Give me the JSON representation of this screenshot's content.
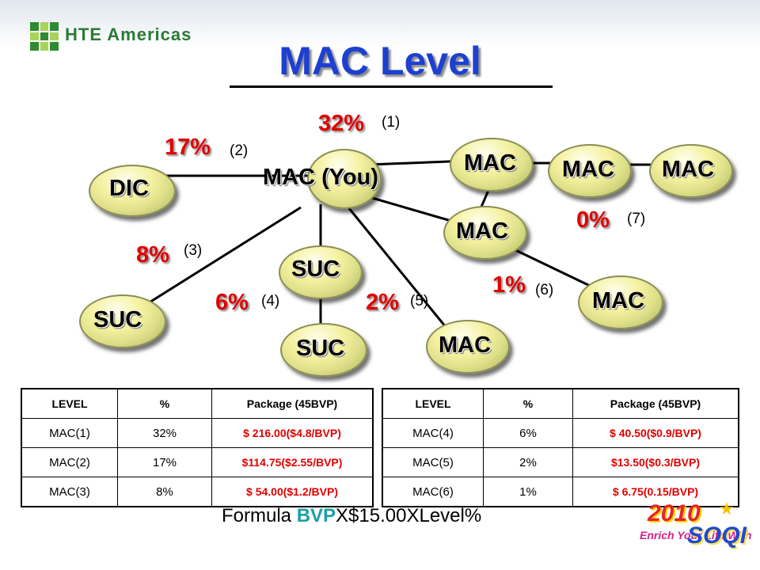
{
  "header": {
    "brand": "HTE Americas",
    "title": "MAC Level"
  },
  "diagram": {
    "nodes": {
      "dic": "DIC",
      "you": "MAC (You)",
      "mac1a": "MAC",
      "mac1b": "MAC",
      "mac1c": "MAC",
      "mac7": "MAC",
      "suc_mid": "SUC",
      "suc_left": "SUC",
      "suc_bottom": "SUC",
      "mac_bottom": "MAC",
      "mac_right": "MAC"
    },
    "levels": [
      {
        "pct": "32%",
        "num": "(1)"
      },
      {
        "pct": "17%",
        "num": "(2)"
      },
      {
        "pct": "8%",
        "num": "(3)"
      },
      {
        "pct": "6%",
        "num": "(4)"
      },
      {
        "pct": "2%",
        "num": "(5)"
      },
      {
        "pct": "1%",
        "num": "(6)"
      },
      {
        "pct": "0%",
        "num": "(7)"
      }
    ]
  },
  "table_left": {
    "headers": [
      "LEVEL",
      "%",
      "Package (45BVP)"
    ],
    "rows": [
      [
        "MAC(1)",
        "32%",
        "$ 216.00($4.8/BVP)"
      ],
      [
        "MAC(2)",
        "17%",
        "$114.75($2.55/BVP)"
      ],
      [
        "MAC(3)",
        "8%",
        "$ 54.00($1.2/BVP)"
      ]
    ]
  },
  "table_right": {
    "headers": [
      "LEVEL",
      "%",
      "Package (45BVP)"
    ],
    "rows": [
      [
        "MAC(4)",
        "6%",
        "$  40.50($0.9/BVP)"
      ],
      [
        "MAC(5)",
        "2%",
        "$13.50($0.3/BVP)"
      ],
      [
        "MAC(6)",
        "1%",
        "$ 6.75(0.15/BVP)"
      ]
    ]
  },
  "formula": {
    "prefix": "Formula ",
    "highlight": "BVP",
    "suffix": "X$15.00XLevel%"
  },
  "badge": {
    "year": "2010",
    "tagline": "Enrich Your Life With",
    "brand": "SOQI"
  },
  "colors": {
    "title": "#1d3fd2",
    "percent": "#e00000",
    "money": "#e00000",
    "brand": "#2b7a35",
    "formula_highlight": "#1aa0a5"
  }
}
